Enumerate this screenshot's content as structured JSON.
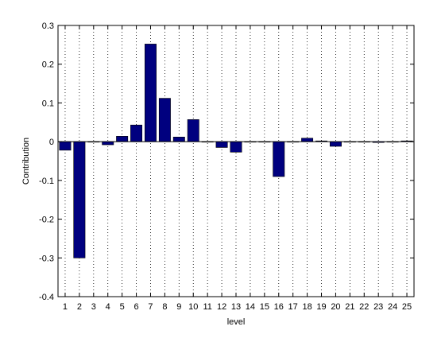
{
  "chart_data": {
    "type": "bar",
    "title": "",
    "xlabel": "level",
    "ylabel": "Contribution",
    "categories": [
      "1",
      "2",
      "3",
      "4",
      "5",
      "6",
      "7",
      "8",
      "9",
      "10",
      "11",
      "12",
      "13",
      "14",
      "15",
      "16",
      "17",
      "18",
      "19",
      "20",
      "21",
      "22",
      "23",
      "24",
      "25"
    ],
    "values": [
      -0.022,
      -0.3,
      0.0,
      -0.008,
      0.014,
      0.043,
      0.252,
      0.112,
      0.012,
      0.057,
      0.0,
      -0.015,
      -0.027,
      0.0,
      0.0,
      -0.09,
      0.0,
      0.009,
      0.002,
      -0.012,
      0.0,
      0.0,
      -0.002,
      0.0,
      0.002
    ],
    "ylim": [
      -0.4,
      0.3
    ],
    "yticks": [
      -0.4,
      -0.3,
      -0.2,
      -0.1,
      0,
      0.1,
      0.2,
      0.3
    ],
    "ytick_labels": [
      "-0.4",
      "-0.3",
      "-0.2",
      "-0.1",
      "0",
      "0.1",
      "0.2",
      "0.3"
    ],
    "grid": "vertical-dotted",
    "colors": {
      "bar_fill": "#00007f",
      "bar_edge": "#000000",
      "grid": "#000000",
      "axes": "#000000",
      "background": "#ffffff"
    }
  }
}
